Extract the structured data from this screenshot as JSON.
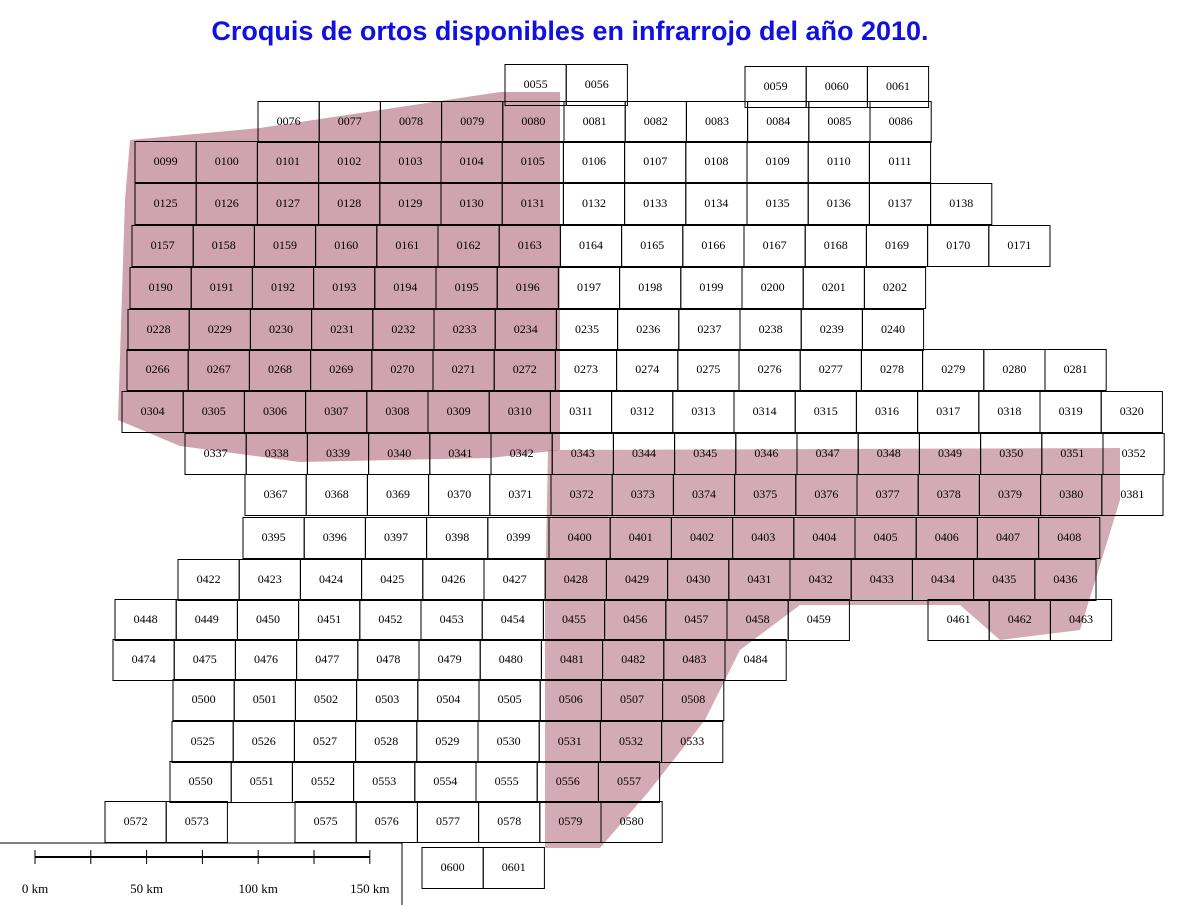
{
  "title": "Croquis de ortos disponibles en infrarrojo del año 2010.",
  "sheet_rows": [
    [
      "0055",
      "0056"
    ],
    [
      "0059",
      "0060",
      "0061"
    ],
    [
      "0076",
      "0077",
      "0078",
      "0079",
      "0080",
      "0081",
      "0082",
      "0083",
      "0084",
      "0085",
      "0086"
    ],
    [
      "0099",
      "0100",
      "0101",
      "0102",
      "0103",
      "0104",
      "0105",
      "0106",
      "0107",
      "0108",
      "0109",
      "0110",
      "0111"
    ],
    [
      "0125",
      "0126",
      "0127",
      "0128",
      "0129",
      "0130",
      "0131",
      "0132",
      "0133",
      "0134",
      "0135",
      "0136",
      "0137",
      "0138"
    ],
    [
      "0157",
      "0158",
      "0159",
      "0160",
      "0161",
      "0162",
      "0163",
      "0164",
      "0165",
      "0166",
      "0167",
      "0168",
      "0169",
      "0170",
      "0171"
    ],
    [
      "0190",
      "0191",
      "0192",
      "0193",
      "0194",
      "0195",
      "0196",
      "0197",
      "0198",
      "0199",
      "0200",
      "0201",
      "0202"
    ],
    [
      "0228",
      "0229",
      "0230",
      "0231",
      "0232",
      "0233",
      "0234",
      "0235",
      "0236",
      "0237",
      "0238",
      "0239",
      "0240"
    ],
    [
      "0266",
      "0267",
      "0268",
      "0269",
      "0270",
      "0271",
      "0272",
      "0273",
      "0274",
      "0275",
      "0276",
      "0277",
      "0278",
      "0279",
      "0280",
      "0281"
    ],
    [
      "0304",
      "0305",
      "0306",
      "0307",
      "0308",
      "0309",
      "0310",
      "0311",
      "0312",
      "0313",
      "0314",
      "0315",
      "0316",
      "0317",
      "0318",
      "0319",
      "0320"
    ],
    [
      "0337",
      "0338",
      "0339",
      "0340",
      "0341",
      "0342",
      "0343",
      "0344",
      "0345",
      "0346",
      "0347",
      "0348",
      "0349",
      "0350",
      "0351",
      "0352"
    ],
    [
      "0367",
      "0368",
      "0369",
      "0370",
      "0371",
      "0372",
      "0373",
      "0374",
      "0375",
      "0376",
      "0377",
      "0378",
      "0379",
      "0380",
      "0381"
    ],
    [
      "0395",
      "0396",
      "0397",
      "0398",
      "0399",
      "0400",
      "0401",
      "0402",
      "0403",
      "0404",
      "0405",
      "0406",
      "0407",
      "0408"
    ],
    [
      "0422",
      "0423",
      "0424",
      "0425",
      "0426",
      "0427",
      "0428",
      "0429",
      "0430",
      "0431",
      "0432",
      "0433",
      "0434",
      "0435",
      "0436"
    ],
    [
      "0448",
      "0449",
      "0450",
      "0451",
      "0452",
      "0453",
      "0454",
      "0455",
      "0456",
      "0457",
      "0458",
      "0459"
    ],
    [
      "0461",
      "0462",
      "0463"
    ],
    [
      "0474",
      "0475",
      "0476",
      "0477",
      "0478",
      "0479",
      "0480",
      "0481",
      "0482",
      "0483",
      "0484"
    ],
    [
      "0500",
      "0501",
      "0502",
      "0503",
      "0504",
      "0505",
      "0506",
      "0507",
      "0508"
    ],
    [
      "0525",
      "0526",
      "0527",
      "0528",
      "0529",
      "0530",
      "0531",
      "0532",
      "0533"
    ],
    [
      "0550",
      "0551",
      "0552",
      "0553",
      "0554",
      "0555",
      "0556",
      "0557"
    ],
    [
      "0572",
      "0573"
    ],
    [
      "0575",
      "0576",
      "0577",
      "0578",
      "0579",
      "0580"
    ],
    [
      "0600",
      "0601"
    ]
  ],
  "scale_labels": [
    "0 km",
    "50 km",
    "100 km",
    "150 km"
  ]
}
